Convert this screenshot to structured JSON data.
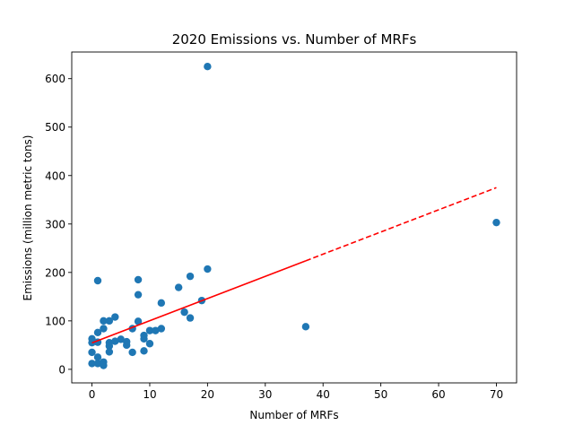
{
  "chart_data": {
    "type": "scatter",
    "title": "2020 Emissions vs. Number of MRFs",
    "xlabel": "Number of MRFs",
    "ylabel": "Emissions (million metric tons)",
    "xlim": [
      -3.5,
      73.5
    ],
    "ylim": [
      -28,
      655
    ],
    "xticks": [
      0,
      10,
      20,
      30,
      40,
      50,
      60,
      70
    ],
    "yticks": [
      0,
      100,
      200,
      300,
      400,
      500,
      600
    ],
    "grid": false,
    "legend": "none",
    "point_color": "#1f77b4",
    "trend_color": "#ff0000",
    "points": [
      [
        0,
        63
      ],
      [
        0,
        55
      ],
      [
        0,
        35
      ],
      [
        0,
        12
      ],
      [
        1,
        183
      ],
      [
        1,
        76
      ],
      [
        1,
        56
      ],
      [
        1,
        25
      ],
      [
        1,
        12
      ],
      [
        2,
        100
      ],
      [
        2,
        84
      ],
      [
        2,
        15
      ],
      [
        2,
        8
      ],
      [
        3,
        100
      ],
      [
        3,
        55
      ],
      [
        3,
        48
      ],
      [
        3,
        36
      ],
      [
        4,
        108
      ],
      [
        4,
        58
      ],
      [
        5,
        62
      ],
      [
        6,
        57
      ],
      [
        6,
        50
      ],
      [
        7,
        84
      ],
      [
        7,
        35
      ],
      [
        8,
        185
      ],
      [
        8,
        154
      ],
      [
        8,
        99
      ],
      [
        9,
        70
      ],
      [
        9,
        63
      ],
      [
        9,
        38
      ],
      [
        10,
        80
      ],
      [
        10,
        53
      ],
      [
        11,
        80
      ],
      [
        12,
        137
      ],
      [
        12,
        84
      ],
      [
        15,
        169
      ],
      [
        16,
        118
      ],
      [
        17,
        192
      ],
      [
        17,
        106
      ],
      [
        19,
        142
      ],
      [
        20,
        625
      ],
      [
        20,
        207
      ],
      [
        37,
        88
      ],
      [
        70,
        303
      ]
    ],
    "trend": {
      "solid": [
        [
          0,
          54.5
        ],
        [
          37,
          224
        ]
      ],
      "dashed": [
        [
          37,
          224
        ],
        [
          70,
          375
        ]
      ]
    }
  }
}
